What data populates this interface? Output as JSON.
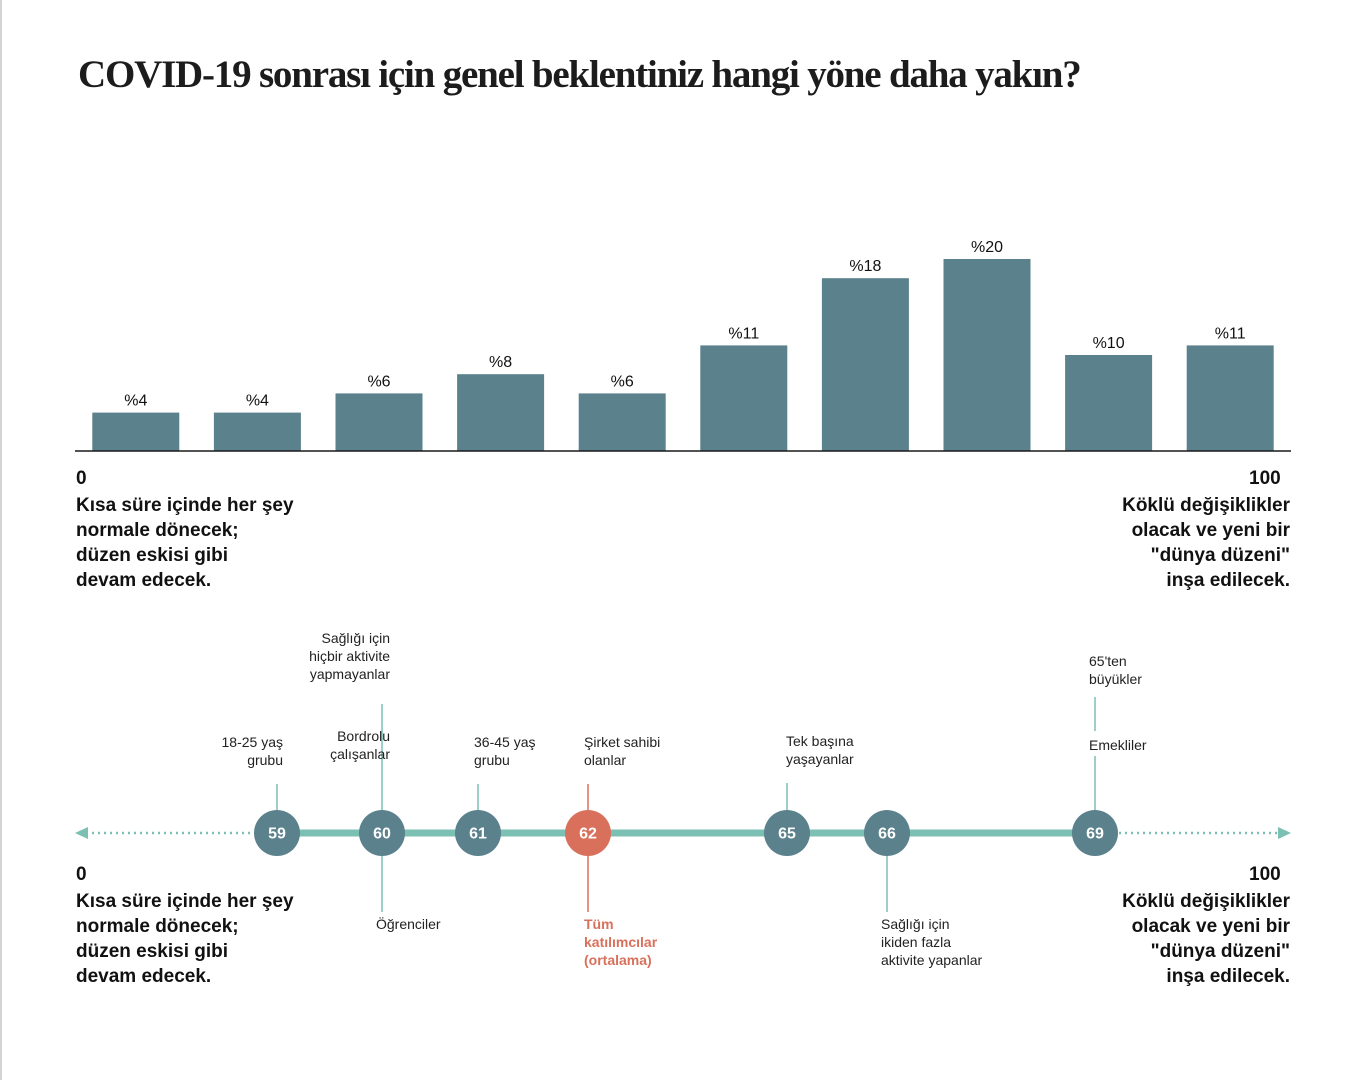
{
  "title": "COVID-19 sonrası için genel beklentiniz hangi yöne daha yakın?",
  "colors": {
    "bar": "#5a818c",
    "baseline": "#1a1a1a",
    "track": "#7cbfb3",
    "node": "#5a818c",
    "node_average": "#d9705c",
    "connector": "#7cbfb3"
  },
  "scale": {
    "min_label": "0",
    "max_label": "100",
    "left_text": [
      "Kısa süre içinde her şey",
      "normale dönecek;",
      "düzen eskisi gibi",
      "devam edecek."
    ],
    "right_text": [
      "Köklü değişiklikler",
      "olacak ve yeni bir",
      "\"dünya düzeni\"",
      "inşa edilecek."
    ]
  },
  "chart_data": [
    {
      "type": "bar",
      "title": "COVID-19 sonrası için genel beklentiniz hangi yöne daha yakın?",
      "categories": [
        "",
        "",
        "",
        "",
        "",
        "",
        "",
        "",
        "",
        ""
      ],
      "values": [
        4,
        4,
        6,
        8,
        6,
        11,
        18,
        20,
        10,
        11
      ],
      "value_labels": [
        "%4",
        "%4",
        "%6",
        "%8",
        "%6",
        "%11",
        "%18",
        "%20",
        "%10",
        "%11"
      ],
      "ylim": [
        0,
        20
      ],
      "xlabel": "",
      "ylabel": "",
      "x_range_labels": [
        "0",
        "100"
      ],
      "grid": false,
      "legend": "none"
    },
    {
      "type": "scatter",
      "axis_range": [
        0,
        100
      ],
      "points": [
        {
          "value": 59,
          "label_above": "18-25 yaş\ngrubu"
        },
        {
          "value": 60,
          "label_above": "Bordrolu\nçalışanlar",
          "label_above_2": "Sağlığı için\nhiçbir aktivite\nyapmayanlar",
          "label_below": "Öğrenciler"
        },
        {
          "value": 61,
          "label_above": "36-45 yaş\ngrubu"
        },
        {
          "value": 62,
          "label_above": "Şirket sahibi\nolanlar",
          "label_below": "Tüm\nkatılımcılar\n(ortalama)",
          "highlight": true
        },
        {
          "value": 65,
          "label_above": "Tek başına\nyaşayanlar"
        },
        {
          "value": 66,
          "label_below": "Sağlığı için\nikiden fazla\naktivite yapanlar"
        },
        {
          "value": 69,
          "label_above": "Emekliler",
          "label_above_2": "65'ten\nbüyükler"
        }
      ],
      "axis_labels": [
        "0",
        "100"
      ]
    }
  ]
}
